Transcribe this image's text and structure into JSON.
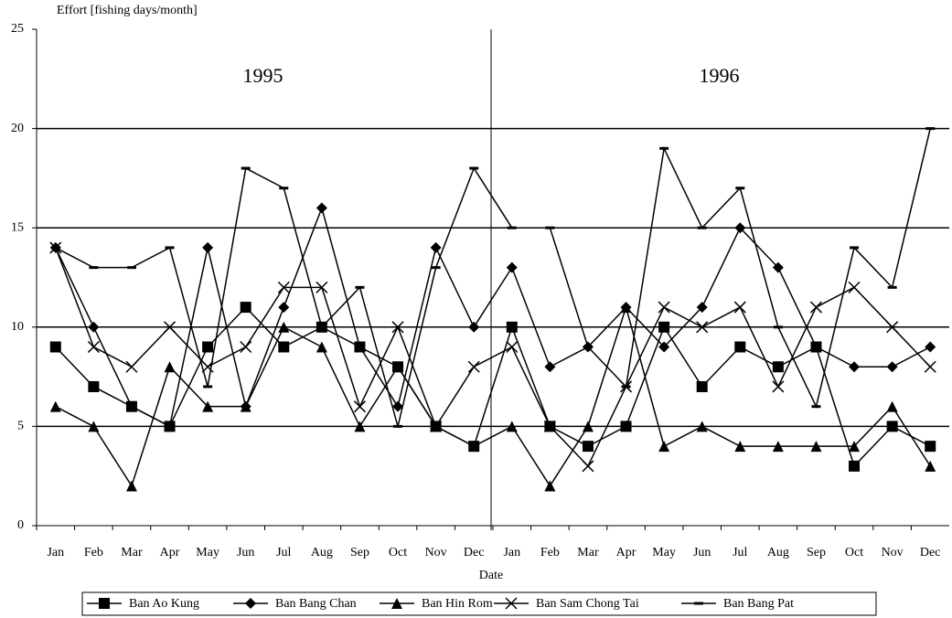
{
  "chart_data": {
    "type": "line",
    "y_label": "Effort [fishing days/month]",
    "x_label": "Date",
    "annotations": [
      "1995",
      "1996"
    ],
    "categories": [
      "Jan",
      "Feb",
      "Mar",
      "Apr",
      "May",
      "Jun",
      "Jul",
      "Aug",
      "Sep",
      "Oct",
      "Nov",
      "Dec",
      "Jan",
      "Feb",
      "Mar",
      "Apr",
      "May",
      "Jun",
      "Jul",
      "Aug",
      "Sep",
      "Oct",
      "Nov",
      "Dec"
    ],
    "series": [
      {
        "name": "Ban Ao Kung",
        "color": "#000000",
        "marker": "square",
        "values": [
          9,
          7,
          6,
          5,
          9,
          11,
          9,
          10,
          9,
          8,
          5,
          4,
          10,
          5,
          4,
          5,
          10,
          7,
          9,
          8,
          9,
          3,
          5,
          4
        ]
      },
      {
        "name": "Ban Bang Chan",
        "color": "#000000",
        "marker": "diamond",
        "values": [
          14,
          10,
          6,
          5,
          14,
          6,
          11,
          16,
          9,
          6,
          14,
          10,
          13,
          8,
          9,
          11,
          9,
          11,
          15,
          13,
          9,
          8,
          8,
          9
        ]
      },
      {
        "name": "Ban Hin Rom",
        "color": "#000000",
        "marker": "triangle",
        "values": [
          6,
          5,
          2,
          8,
          6,
          6,
          10,
          9,
          5,
          8,
          5,
          4,
          5,
          2,
          5,
          11,
          4,
          5,
          4,
          4,
          4,
          4,
          6,
          3
        ]
      },
      {
        "name": "Ban Sam Chong Tai",
        "color": "#000000",
        "marker": "cross",
        "values": [
          14,
          9,
          8,
          10,
          8,
          9,
          12,
          12,
          6,
          10,
          5,
          8,
          9,
          5,
          3,
          7,
          11,
          10,
          11,
          7,
          11,
          12,
          10,
          8
        ]
      },
      {
        "name": "Ban Bang Pat",
        "color": "#000000",
        "marker": "dash",
        "values": [
          14,
          13,
          13,
          14,
          7,
          18,
          17,
          10,
          12,
          5,
          13,
          18,
          15,
          15,
          9,
          7,
          19,
          15,
          17,
          10,
          6,
          14,
          12,
          20
        ]
      }
    ],
    "ylim": [
      0,
      25
    ],
    "yticks": [
      0,
      5,
      10,
      15,
      20,
      25
    ],
    "grid": true,
    "legend": "bottom"
  }
}
